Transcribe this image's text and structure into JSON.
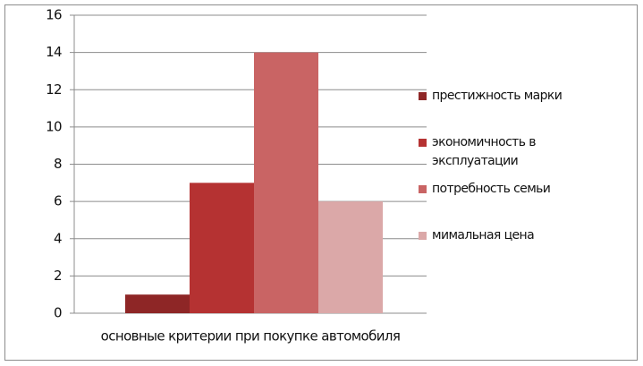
{
  "chart_data": {
    "type": "bar",
    "categories": [
      "основные критерии при покупке автомобиля"
    ],
    "series": [
      {
        "name": "престижность марки",
        "color": "#8e2626",
        "values": [
          1
        ]
      },
      {
        "name": "экономичность в эксплуатации",
        "color": "#b53232",
        "values": [
          7
        ]
      },
      {
        "name": "потребность семьи",
        "color": "#c96464",
        "values": [
          14
        ]
      },
      {
        "name": "мимальная цена",
        "color": "#dba8a8",
        "values": [
          6
        ]
      }
    ],
    "ylim": [
      0,
      16
    ],
    "yticks": [
      0,
      2,
      4,
      6,
      8,
      10,
      12,
      14,
      16
    ],
    "grid": true,
    "legend": "right"
  }
}
